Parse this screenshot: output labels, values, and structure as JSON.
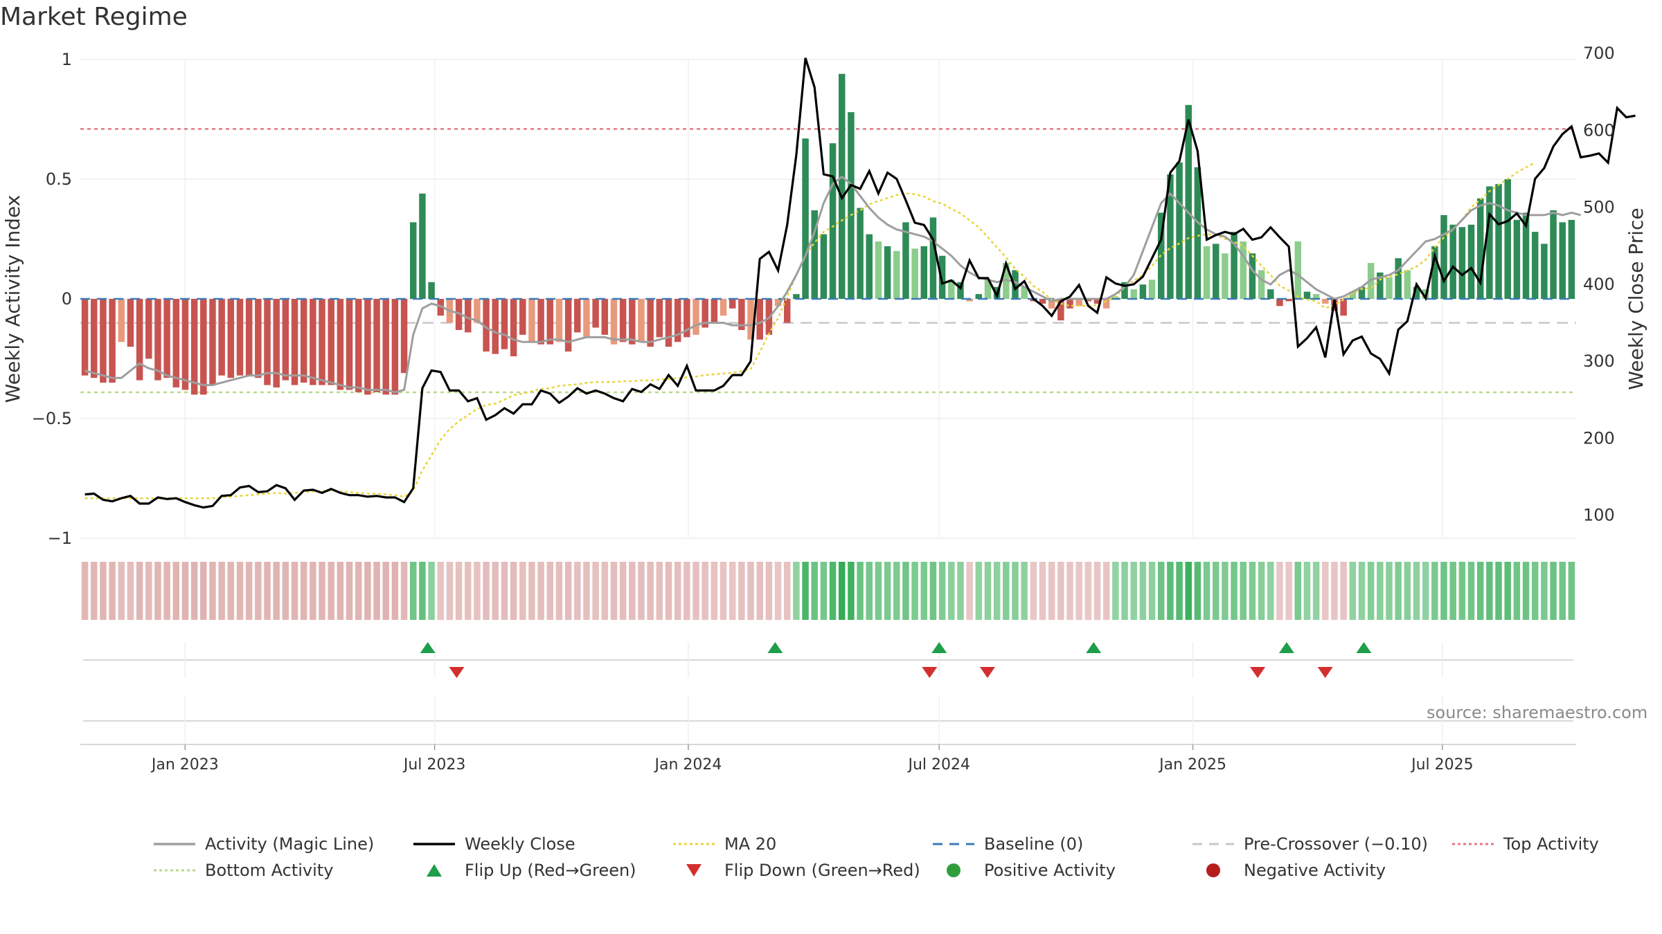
{
  "title": "Market Regime",
  "source_note": "source: sharemaestro.com",
  "colors": {
    "magic_line": "#9e9e9e",
    "close": "#000000",
    "ma20": "#e8d53a",
    "baseline": "#3a7ab8",
    "pre_crossover": "#c8c8c8",
    "top_activity": "#e07a86",
    "bottom_activity": "#b8d98a",
    "pos_dark": "#2e8b57",
    "pos_light": "#8ccc8c",
    "neg_dark": "#c85450",
    "neg_light": "#e99a7c",
    "flip_up": "#1e9e4a",
    "flip_down": "#d32f2f"
  },
  "legend": [
    {
      "key": "magic",
      "label": "Activity (Magic Line)",
      "marker": "line-gray"
    },
    {
      "key": "close",
      "label": "Weekly Close",
      "marker": "line-black"
    },
    {
      "key": "ma20",
      "label": "MA 20",
      "marker": "dots-yellow"
    },
    {
      "key": "baseline",
      "label": "Baseline (0)",
      "marker": "dash-blue"
    },
    {
      "key": "pre",
      "label": "Pre-Crossover (−0.10)",
      "marker": "dash-gray"
    },
    {
      "key": "top",
      "label": "Top Activity",
      "marker": "dots-red"
    },
    {
      "key": "bottom",
      "label": "Bottom Activity",
      "marker": "dots-green"
    },
    {
      "key": "flipup",
      "label": "Flip Up (Red→Green)",
      "marker": "tri-up"
    },
    {
      "key": "flipdown",
      "label": "Flip Down (Green→Red)",
      "marker": "tri-down"
    },
    {
      "key": "pos",
      "label": "Positive Activity",
      "marker": "dot-green"
    },
    {
      "key": "neg",
      "label": "Negative Activity",
      "marker": "dot-red"
    }
  ],
  "chart_data": {
    "type": "bar",
    "x_range": [
      "2022-10-17",
      "2025-10-06"
    ],
    "x_ticks": [
      {
        "date": "2023-01-01",
        "label": "Jan 2023"
      },
      {
        "date": "2023-07-01",
        "label": "Jul 2023"
      },
      {
        "date": "2024-01-01",
        "label": "Jan 2024"
      },
      {
        "date": "2024-07-01",
        "label": "Jul 2024"
      },
      {
        "date": "2025-01-01",
        "label": "Jan 2025"
      },
      {
        "date": "2025-07-01",
        "label": "Jul 2025"
      }
    ],
    "y_left": {
      "label": "Weekly Activity Index",
      "min": -1,
      "max": 1,
      "ticks": [
        {
          "v": 1,
          "label": "1"
        },
        {
          "v": 0.5,
          "label": "0.5"
        },
        {
          "v": 0,
          "label": "0"
        },
        {
          "v": -0.5,
          "label": "−0.5"
        },
        {
          "v": -1,
          "label": "−1"
        }
      ]
    },
    "y_right": {
      "label": "Weekly Close Price",
      "min": 70,
      "max": 710,
      "ticks": [
        {
          "v": 700,
          "label": "700"
        },
        {
          "v": 600,
          "label": "600"
        },
        {
          "v": 500,
          "label": "500"
        },
        {
          "v": 400,
          "label": "400"
        },
        {
          "v": 300,
          "label": "300"
        },
        {
          "v": 200,
          "label": "200"
        },
        {
          "v": 100,
          "label": "100"
        }
      ]
    },
    "reference_lines": {
      "top_activity": 0.71,
      "bottom_activity": -0.39,
      "pre_crossover": -0.1,
      "baseline": 0
    },
    "activity": [
      -0.32,
      -0.33,
      -0.35,
      -0.35,
      -0.18,
      -0.2,
      -0.34,
      -0.25,
      -0.34,
      -0.33,
      -0.37,
      -0.38,
      -0.4,
      -0.4,
      -0.36,
      -0.32,
      -0.33,
      -0.32,
      -0.32,
      -0.33,
      -0.36,
      -0.37,
      -0.34,
      -0.36,
      -0.35,
      -0.36,
      -0.36,
      -0.36,
      -0.38,
      -0.38,
      -0.39,
      -0.4,
      -0.39,
      -0.4,
      -0.4,
      -0.31,
      0.32,
      0.44,
      0.07,
      -0.07,
      -0.1,
      -0.13,
      -0.14,
      -0.1,
      -0.22,
      -0.23,
      -0.21,
      -0.24,
      -0.15,
      -0.18,
      -0.19,
      -0.19,
      -0.18,
      -0.22,
      -0.14,
      -0.16,
      -0.12,
      -0.15,
      -0.19,
      -0.18,
      -0.19,
      -0.18,
      -0.2,
      -0.16,
      -0.2,
      -0.18,
      -0.16,
      -0.15,
      -0.12,
      -0.1,
      -0.07,
      -0.04,
      -0.13,
      -0.17,
      -0.17,
      -0.15,
      -0.03,
      -0.1,
      0.02,
      0.67,
      0.37,
      0.27,
      0.65,
      0.94,
      0.78,
      0.38,
      0.27,
      0.24,
      0.22,
      0.2,
      0.32,
      0.21,
      0.22,
      0.34,
      0.18,
      0.08,
      0.07,
      -0.01,
      0.02,
      0.08,
      0.05,
      0.15,
      0.12,
      0.05,
      -0.01,
      -0.02,
      -0.04,
      -0.09,
      -0.04,
      -0.03,
      -0.01,
      -0.02,
      -0.04,
      0.01,
      0.07,
      0.04,
      0.06,
      0.08,
      0.36,
      0.52,
      0.57,
      0.81,
      0.55,
      0.22,
      0.23,
      0.19,
      0.28,
      0.24,
      0.19,
      0.12,
      0.04,
      -0.03,
      -0.01,
      0.24,
      0.03,
      0.02,
      -0.02,
      -0.05,
      -0.07,
      0.03,
      0.05,
      0.15,
      0.11,
      0.09,
      0.17,
      0.12,
      0.05,
      0.04,
      0.22,
      0.35,
      0.31,
      0.3,
      0.31,
      0.42,
      0.47,
      0.48,
      0.5,
      0.33,
      0.36,
      0.28,
      0.23,
      0.37,
      0.32,
      0.33
    ],
    "magic_line": [
      -0.3,
      -0.31,
      -0.32,
      -0.33,
      -0.33,
      -0.3,
      -0.27,
      -0.29,
      -0.3,
      -0.32,
      -0.33,
      -0.34,
      -0.35,
      -0.36,
      -0.36,
      -0.35,
      -0.34,
      -0.33,
      -0.32,
      -0.32,
      -0.31,
      -0.31,
      -0.32,
      -0.32,
      -0.32,
      -0.33,
      -0.34,
      -0.35,
      -0.36,
      -0.37,
      -0.37,
      -0.38,
      -0.38,
      -0.38,
      -0.39,
      -0.38,
      -0.15,
      -0.04,
      -0.02,
      -0.03,
      -0.05,
      -0.06,
      -0.08,
      -0.09,
      -0.12,
      -0.14,
      -0.15,
      -0.17,
      -0.18,
      -0.18,
      -0.18,
      -0.17,
      -0.17,
      -0.18,
      -0.17,
      -0.16,
      -0.16,
      -0.16,
      -0.17,
      -0.17,
      -0.17,
      -0.18,
      -0.18,
      -0.17,
      -0.16,
      -0.15,
      -0.13,
      -0.11,
      -0.1,
      -0.1,
      -0.1,
      -0.11,
      -0.11,
      -0.11,
      -0.1,
      -0.08,
      -0.03,
      0.03,
      0.1,
      0.18,
      0.28,
      0.4,
      0.48,
      0.51,
      0.48,
      0.43,
      0.38,
      0.34,
      0.31,
      0.29,
      0.28,
      0.27,
      0.26,
      0.24,
      0.21,
      0.18,
      0.14,
      0.11,
      0.09,
      0.08,
      0.07,
      0.08,
      0.07,
      0.05,
      0.03,
      0.01,
      -0.01,
      0.0,
      0.0,
      0.0,
      0.0,
      0.0,
      0.0,
      0.02,
      0.05,
      0.1,
      0.2,
      0.3,
      0.4,
      0.44,
      0.4,
      0.36,
      0.32,
      0.29,
      0.27,
      0.26,
      0.23,
      0.18,
      0.12,
      0.08,
      0.06,
      0.1,
      0.12,
      0.1,
      0.07,
      0.04,
      0.02,
      0.0,
      0.01,
      0.03,
      0.05,
      0.08,
      0.09,
      0.1,
      0.12,
      0.16,
      0.2,
      0.24,
      0.25,
      0.27,
      0.29,
      0.33,
      0.37,
      0.39,
      0.4,
      0.39,
      0.37,
      0.36,
      0.35,
      0.35,
      0.35,
      0.36,
      0.35,
      0.36,
      0.35
    ],
    "weekly_close": [
      127,
      128,
      120,
      118,
      122,
      125,
      115,
      115,
      123,
      121,
      122,
      117,
      113,
      110,
      112,
      125,
      126,
      136,
      138,
      130,
      131,
      139,
      135,
      120,
      132,
      133,
      129,
      134,
      129,
      126,
      126,
      124,
      125,
      123,
      123,
      117,
      135,
      265,
      288,
      286,
      262,
      262,
      248,
      252,
      224,
      230,
      239,
      232,
      244,
      244,
      262,
      258,
      246,
      254,
      265,
      258,
      262,
      258,
      252,
      248,
      264,
      260,
      270,
      264,
      282,
      268,
      294,
      262,
      262,
      262,
      268,
      282,
      282,
      300,
      433,
      442,
      418,
      477,
      568,
      694,
      656,
      543,
      540,
      512,
      529,
      524,
      547,
      518,
      545,
      537,
      509,
      480,
      477,
      458,
      401,
      405,
      395,
      431,
      408,
      408,
      385,
      427,
      394,
      404,
      381,
      372,
      359,
      378,
      384,
      399,
      372,
      363,
      409,
      401,
      398,
      400,
      410,
      434,
      458,
      545,
      560,
      614,
      573,
      458,
      464,
      468,
      465,
      472,
      458,
      461,
      474,
      461,
      449,
      319,
      330,
      344,
      305,
      380,
      309,
      327,
      332,
      310,
      303,
      284,
      341,
      352,
      400,
      382,
      437,
      404,
      423,
      412,
      421,
      402,
      491,
      478,
      482,
      492,
      476,
      537,
      551,
      579,
      595,
      605,
      565,
      567,
      570,
      558,
      629,
      617,
      619
    ],
    "ma20": [
      122,
      122,
      122,
      122,
      122,
      122,
      122,
      122,
      122,
      122,
      122,
      122,
      122,
      122,
      122,
      123,
      124,
      125,
      126,
      127,
      128,
      129,
      128,
      129,
      130,
      131,
      131,
      132,
      131,
      130,
      129,
      128,
      128,
      127,
      126,
      124,
      132,
      158,
      178,
      198,
      212,
      222,
      230,
      238,
      243,
      245,
      250,
      256,
      258,
      261,
      264,
      265,
      268,
      269,
      270,
      272,
      273,
      273,
      273,
      274,
      274,
      275,
      275,
      276,
      277,
      278,
      279,
      280,
      282,
      283,
      284,
      285,
      287,
      290,
      312,
      336,
      356,
      384,
      412,
      438,
      454,
      468,
      475,
      483,
      490,
      496,
      504,
      508,
      512,
      516,
      518,
      517,
      514,
      508,
      505,
      498,
      492,
      483,
      474,
      461,
      448,
      435,
      420,
      410,
      398,
      390,
      380,
      375,
      372,
      372,
      372,
      373,
      378,
      384,
      396,
      405,
      412,
      424,
      438,
      447,
      453,
      460,
      463,
      465,
      464,
      459,
      455,
      450,
      437,
      424,
      412,
      398,
      392,
      384,
      380,
      378,
      369,
      373,
      380,
      388,
      394,
      395,
      406,
      410,
      413,
      418,
      423,
      432,
      448,
      461,
      471,
      484,
      500,
      510,
      521,
      529,
      537,
      545,
      552,
      558
    ],
    "flip_up_dates": [
      "2023-06-26",
      "2024-03-04",
      "2024-07-01",
      "2024-10-21",
      "2025-03-10",
      "2025-05-05"
    ],
    "flip_down_dates": [
      "2023-07-17",
      "2024-06-24",
      "2024-08-05",
      "2025-02-17",
      "2025-04-07"
    ]
  }
}
